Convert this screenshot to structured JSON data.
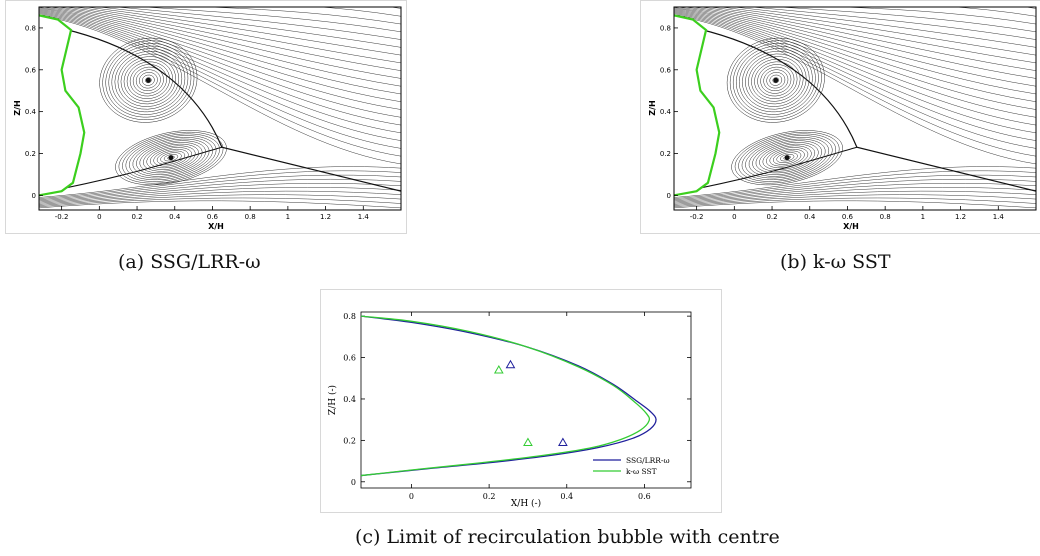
{
  "figures": [
    {
      "caption": "(a) SSG/LRR-ω",
      "x_axis_label": "X/H",
      "y_axis_label": "Z/H",
      "x_ticks": [
        "-0.2",
        "0",
        "0.2",
        "0.4",
        "0.6",
        "0.8",
        "1",
        "1.2",
        "1.4"
      ],
      "y_ticks": [
        "0",
        "0.2",
        "0.4",
        "0.6",
        "0.8"
      ]
    },
    {
      "caption": "(b) k-ω SST",
      "x_axis_label": "X/H",
      "y_axis_label": "Z/H",
      "x_ticks": [
        "-0.2",
        "0",
        "0.2",
        "0.4",
        "0.6",
        "0.8",
        "1",
        "1.2",
        "1.4"
      ],
      "y_ticks": [
        "0",
        "0.2",
        "0.4",
        "0.6",
        "0.8"
      ]
    },
    {
      "caption": "(c) Limit of recirculation bubble with centre"
    }
  ],
  "chart_data": {
    "type": "line",
    "xlabel": "X/H (-)",
    "ylabel": "Z/H (-)",
    "xlim": [
      -0.13,
      0.72
    ],
    "ylim": [
      -0.03,
      0.82
    ],
    "x_ticks": [
      "0",
      "0.2",
      "0.4",
      "0.6"
    ],
    "y_ticks": [
      "0",
      "0.2",
      "0.4",
      "0.6",
      "0.8"
    ],
    "legend_position": "bottom-right",
    "series": [
      {
        "name": "SSG/LRR-ω",
        "color": "#1f1f9c",
        "points": [
          [
            -0.13,
            0.8
          ],
          [
            0.0,
            0.77
          ],
          [
            0.15,
            0.72
          ],
          [
            0.3,
            0.65
          ],
          [
            0.43,
            0.56
          ],
          [
            0.52,
            0.47
          ],
          [
            0.58,
            0.39
          ],
          [
            0.615,
            0.34
          ],
          [
            0.63,
            0.3
          ],
          [
            0.615,
            0.255
          ],
          [
            0.57,
            0.21
          ],
          [
            0.48,
            0.165
          ],
          [
            0.35,
            0.125
          ],
          [
            0.2,
            0.092
          ],
          [
            0.05,
            0.065
          ],
          [
            -0.13,
            0.03
          ]
        ],
        "centres": [
          [
            0.255,
            0.565
          ],
          [
            0.39,
            0.19
          ]
        ]
      },
      {
        "name": "k-ω SST",
        "color": "#33cc33",
        "points": [
          [
            -0.13,
            0.8
          ],
          [
            0.0,
            0.775
          ],
          [
            0.15,
            0.725
          ],
          [
            0.3,
            0.65
          ],
          [
            0.43,
            0.555
          ],
          [
            0.52,
            0.465
          ],
          [
            0.575,
            0.385
          ],
          [
            0.605,
            0.33
          ],
          [
            0.612,
            0.295
          ],
          [
            0.59,
            0.25
          ],
          [
            0.54,
            0.205
          ],
          [
            0.46,
            0.163
          ],
          [
            0.33,
            0.125
          ],
          [
            0.18,
            0.092
          ],
          [
            0.03,
            0.063
          ],
          [
            -0.13,
            0.03
          ]
        ],
        "centres": [
          [
            0.225,
            0.54
          ],
          [
            0.3,
            0.19
          ]
        ]
      }
    ]
  }
}
